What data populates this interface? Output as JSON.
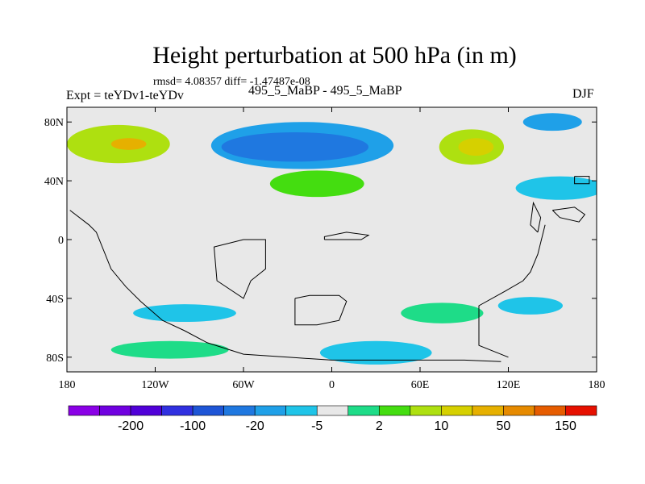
{
  "chart_data": {
    "type": "heatmap",
    "title": "Height perturbation at 500 hPa (in m)",
    "stats": "rmsd= 4.08357  diff= -1.47487e-08",
    "left_label": "Expt = teYDv1-teYDv",
    "center_label": "495_5_MaBP - 495_5_MaBP",
    "right_label": "DJF",
    "x_range": [
      -180,
      180
    ],
    "y_range": [
      -90,
      90
    ],
    "x_ticks": [
      {
        "value": -180,
        "label": "180"
      },
      {
        "value": -120,
        "label": "120W"
      },
      {
        "value": -60,
        "label": "60W"
      },
      {
        "value": 0,
        "label": "0"
      },
      {
        "value": 60,
        "label": "60E"
      },
      {
        "value": 120,
        "label": "120E"
      },
      {
        "value": 180,
        "label": "180"
      }
    ],
    "y_ticks": [
      {
        "value": 80,
        "label": "80N"
      },
      {
        "value": 40,
        "label": "40N"
      },
      {
        "value": 0,
        "label": "0"
      },
      {
        "value": -40,
        "label": "40S"
      },
      {
        "value": -80,
        "label": "80S"
      }
    ],
    "colorbar": {
      "colors": [
        "#8a00e6",
        "#7000e0",
        "#5000d8",
        "#3030e0",
        "#1e55d6",
        "#1f78e0",
        "#1fa0e8",
        "#1fc4e8",
        "#e8e8e8",
        "#1edc88",
        "#44dd10",
        "#aee010",
        "#d6d000",
        "#e6b000",
        "#e68a00",
        "#e65c00",
        "#e61000"
      ],
      "labels": [
        {
          "after_index": 1,
          "text": "-200"
        },
        {
          "after_index": 3,
          "text": "-100"
        },
        {
          "after_index": 5,
          "text": "-20"
        },
        {
          "after_index": 7,
          "text": "-5"
        },
        {
          "after_index": 9,
          "text": "2"
        },
        {
          "after_index": 11,
          "text": "10"
        },
        {
          "after_index": 13,
          "text": "50"
        },
        {
          "after_index": 15,
          "text": "150"
        }
      ]
    },
    "anomaly_regions": [
      {
        "name": "north-pacific-high",
        "level": 11,
        "lon": -145,
        "lat": 65,
        "rlon": 35,
        "rlat": 13
      },
      {
        "name": "north-pacific-high-core",
        "level": 13,
        "lon": -138,
        "lat": 65,
        "rlon": 12,
        "rlat": 4
      },
      {
        "name": "north-america-low",
        "level": 6,
        "lon": -20,
        "lat": 64,
        "rlon": 62,
        "rlat": 16
      },
      {
        "name": "north-america-low-core",
        "level": 5,
        "lon": -25,
        "lat": 63,
        "rlon": 50,
        "rlat": 10
      },
      {
        "name": "north-atlantic-green",
        "level": 10,
        "lon": -10,
        "lat": 38,
        "rlon": 32,
        "rlat": 9
      },
      {
        "name": "eurasia-high",
        "level": 11,
        "lon": 95,
        "lat": 63,
        "rlon": 22,
        "rlat": 12
      },
      {
        "name": "eurasia-high-core",
        "level": 12,
        "lon": 98,
        "lat": 63,
        "rlon": 12,
        "rlat": 6
      },
      {
        "name": "arctic-pacific-low",
        "level": 6,
        "lon": 150,
        "lat": 80,
        "rlon": 20,
        "rlat": 6
      },
      {
        "name": "north-pacific-east-low",
        "level": 7,
        "lon": 155,
        "lat": 35,
        "rlon": 30,
        "rlat": 8
      },
      {
        "name": "south-pacific-low",
        "level": 7,
        "lon": -100,
        "lat": -50,
        "rlon": 35,
        "rlat": 6
      },
      {
        "name": "south-pacific-green",
        "level": 9,
        "lon": -110,
        "lat": -75,
        "rlon": 40,
        "rlat": 6
      },
      {
        "name": "south-atlantic-low",
        "level": 7,
        "lon": 30,
        "lat": -77,
        "rlon": 38,
        "rlat": 8
      },
      {
        "name": "south-indian-green",
        "level": 9,
        "lon": 75,
        "lat": -50,
        "rlon": 28,
        "rlat": 7
      },
      {
        "name": "south-australia-low",
        "level": 7,
        "lon": 135,
        "lat": -45,
        "rlon": 22,
        "rlat": 6
      }
    ],
    "coastlines": [
      {
        "name": "americas-west-coast",
        "points": [
          [
            -178,
            20
          ],
          [
            -165,
            10
          ],
          [
            -160,
            5
          ],
          [
            -150,
            -20
          ],
          [
            -140,
            -32
          ],
          [
            -130,
            -42
          ],
          [
            -115,
            -55
          ],
          [
            -100,
            -62
          ],
          [
            -85,
            -70
          ],
          [
            -60,
            -78
          ],
          [
            -30,
            -80
          ],
          [
            0,
            -82
          ],
          [
            40,
            -82
          ],
          [
            90,
            -82
          ],
          [
            115,
            -83
          ]
        ]
      },
      {
        "name": "east-coastline",
        "points": [
          [
            145,
            10
          ],
          [
            140,
            -10
          ],
          [
            135,
            -22
          ],
          [
            130,
            -28
          ],
          [
            118,
            -35
          ],
          [
            100,
            -45
          ],
          [
            100,
            -72
          ],
          [
            120,
            -80
          ]
        ]
      },
      {
        "name": "africa-outline",
        "points": [
          [
            -25,
            -40
          ],
          [
            -15,
            -38
          ],
          [
            5,
            -38
          ],
          [
            10,
            -42
          ],
          [
            5,
            -55
          ],
          [
            -10,
            -58
          ],
          [
            -25,
            -58
          ],
          [
            -25,
            -40
          ]
        ]
      },
      {
        "name": "south-america-outline",
        "points": [
          [
            -60,
            0
          ],
          [
            -45,
            0
          ],
          [
            -45,
            -20
          ],
          [
            -55,
            -28
          ],
          [
            -60,
            -40
          ],
          [
            -78,
            -28
          ],
          [
            -80,
            -5
          ],
          [
            -60,
            0
          ]
        ]
      },
      {
        "name": "equatorial-africa",
        "points": [
          [
            -5,
            0
          ],
          [
            20,
            0
          ],
          [
            25,
            3
          ],
          [
            10,
            5
          ],
          [
            -5,
            2
          ],
          [
            -5,
            0
          ]
        ]
      },
      {
        "name": "north-pacific-islands",
        "points": [
          [
            150,
            20
          ],
          [
            165,
            22
          ],
          [
            172,
            17
          ],
          [
            168,
            12
          ],
          [
            155,
            15
          ],
          [
            150,
            20
          ]
        ]
      },
      {
        "name": "asia-east-coast",
        "points": [
          [
            140,
            5
          ],
          [
            135,
            10
          ],
          [
            137,
            25
          ],
          [
            142,
            15
          ],
          [
            140,
            5
          ]
        ]
      },
      {
        "name": "alaska-strip",
        "points": [
          [
            165,
            43
          ],
          [
            175,
            43
          ],
          [
            175,
            38
          ],
          [
            165,
            38
          ],
          [
            165,
            43
          ]
        ]
      }
    ]
  }
}
